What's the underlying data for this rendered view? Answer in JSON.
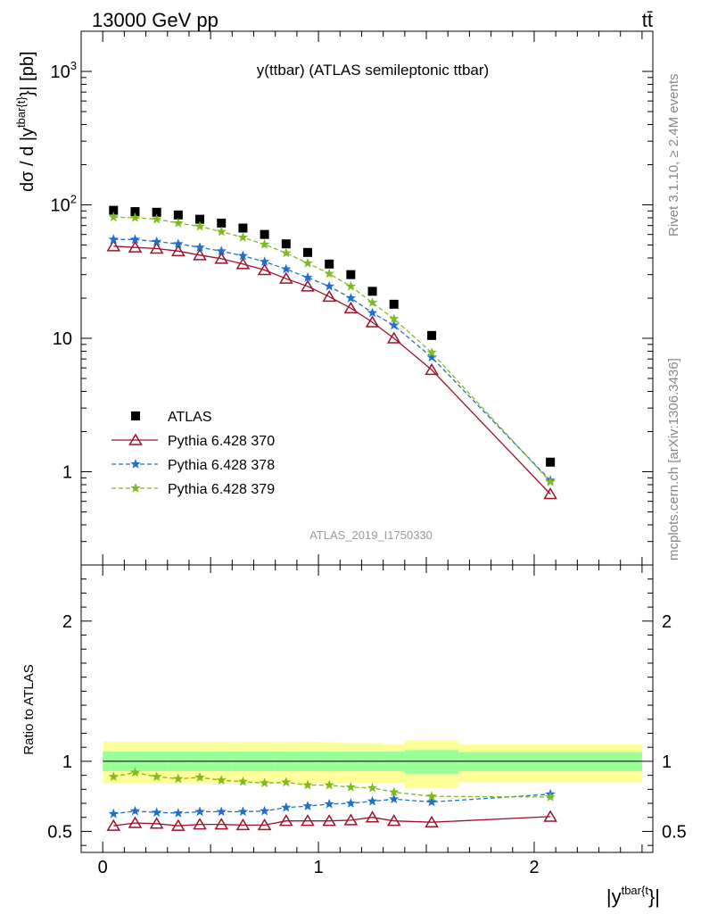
{
  "header": {
    "left": "13000 GeV pp",
    "right": "tt̄"
  },
  "side_labels": {
    "top": "Rivet 3.1.10, ≥ 2.4M events",
    "bottom": "mcplots.cern.ch [arXiv:1306.3436]"
  },
  "chart_data": [
    {
      "type": "scatter",
      "title": "y(ttbar) (ATLAS semileptonic ttbar)",
      "analysis_tag": "ATLAS_2019_I1750330",
      "ylabel_main": "dσ / d |y",
      "ylabel_sup": "tbar{t}",
      "ylabel_tail": "}| [pb]",
      "xlim": [
        -0.1,
        2.55
      ],
      "ylim": [
        0.2,
        2000
      ],
      "yscale": "log",
      "y_tick_labels": [
        "1",
        "10",
        "10",
        "10"
      ],
      "y_tick_exponents": [
        "",
        "",
        "2",
        "3"
      ],
      "legend_position": "middle-left",
      "x": [
        0.05,
        0.15,
        0.25,
        0.35,
        0.45,
        0.55,
        0.65,
        0.75,
        0.85,
        0.95,
        1.05,
        1.15,
        1.25,
        1.35,
        1.525,
        2.075
      ],
      "series": [
        {
          "name": "ATLAS",
          "color": "#000000",
          "marker": "square",
          "line": "none",
          "values": [
            91,
            89,
            88,
            84,
            78,
            73,
            67,
            60,
            51,
            44,
            36,
            30,
            22.5,
            18,
            10.5,
            1.18
          ]
        },
        {
          "name": "Pythia 6.428 370",
          "color": "#a0112a",
          "marker": "triangle-open",
          "line": "solid",
          "values": [
            49,
            48,
            47,
            45,
            42,
            39.5,
            36,
            32.5,
            28,
            24.5,
            20.5,
            16.8,
            13.2,
            10,
            5.8,
            0.68
          ]
        },
        {
          "name": "Pythia 6.428 378",
          "color": "#1f6fd0",
          "marker": "star",
          "line": "dashed",
          "values": [
            55,
            55,
            53,
            51,
            48,
            45,
            41.5,
            37.5,
            33,
            28.5,
            24.5,
            20,
            15.5,
            12.5,
            7.2,
            0.86
          ]
        },
        {
          "name": "Pythia 6.428 379",
          "color": "#80bb1e",
          "marker": "star",
          "line": "dashed",
          "values": [
            81,
            80,
            78,
            73,
            69,
            63,
            57,
            50.5,
            43.5,
            36.5,
            30.5,
            24.5,
            18.5,
            14,
            7.8,
            0.84
          ]
        }
      ]
    },
    {
      "type": "scatter",
      "ylabel": "Ratio to ATLAS",
      "xlabel_main": "|y",
      "xlabel_sup": "tbar{t",
      "xlabel_tail": "}|",
      "xlim": [
        -0.1,
        2.55
      ],
      "ylim": [
        0.35,
        2.4
      ],
      "x_ticks": [
        0,
        1,
        2
      ],
      "x_tick_labels": [
        "0",
        "1",
        "2"
      ],
      "y_ticks": [
        0.5,
        1,
        2
      ],
      "y_tick_labels": [
        "0.5",
        "1",
        "2"
      ],
      "reference_line": 1,
      "bands": [
        {
          "x0": 0.0,
          "x1": 0.1,
          "inner": [
            0.93,
            1.07
          ],
          "outer": [
            0.84,
            1.14
          ]
        },
        {
          "x0": 0.1,
          "x1": 0.2,
          "inner": [
            0.93,
            1.07
          ],
          "outer": [
            0.84,
            1.14
          ]
        },
        {
          "x0": 0.2,
          "x1": 0.3,
          "inner": [
            0.93,
            1.07
          ],
          "outer": [
            0.84,
            1.14
          ]
        },
        {
          "x0": 0.3,
          "x1": 0.4,
          "inner": [
            0.93,
            1.07
          ],
          "outer": [
            0.84,
            1.14
          ]
        },
        {
          "x0": 0.4,
          "x1": 0.5,
          "inner": [
            0.93,
            1.07
          ],
          "outer": [
            0.84,
            1.14
          ]
        },
        {
          "x0": 0.5,
          "x1": 0.6,
          "inner": [
            0.93,
            1.07
          ],
          "outer": [
            0.84,
            1.14
          ]
        },
        {
          "x0": 0.6,
          "x1": 0.7,
          "inner": [
            0.93,
            1.07
          ],
          "outer": [
            0.84,
            1.14
          ]
        },
        {
          "x0": 0.7,
          "x1": 0.8,
          "inner": [
            0.93,
            1.07
          ],
          "outer": [
            0.84,
            1.14
          ]
        },
        {
          "x0": 0.8,
          "x1": 0.9,
          "inner": [
            0.93,
            1.07
          ],
          "outer": [
            0.84,
            1.14
          ]
        },
        {
          "x0": 0.9,
          "x1": 1.0,
          "inner": [
            0.93,
            1.07
          ],
          "outer": [
            0.84,
            1.14
          ]
        },
        {
          "x0": 1.0,
          "x1": 1.1,
          "inner": [
            0.93,
            1.07
          ],
          "outer": [
            0.84,
            1.135
          ]
        },
        {
          "x0": 1.1,
          "x1": 1.2,
          "inner": [
            0.93,
            1.07
          ],
          "outer": [
            0.845,
            1.13
          ]
        },
        {
          "x0": 1.2,
          "x1": 1.3,
          "inner": [
            0.93,
            1.07
          ],
          "outer": [
            0.845,
            1.13
          ]
        },
        {
          "x0": 1.3,
          "x1": 1.4,
          "inner": [
            0.93,
            1.07
          ],
          "outer": [
            0.845,
            1.12
          ]
        },
        {
          "x0": 1.4,
          "x1": 1.65,
          "inner": [
            0.91,
            1.08
          ],
          "outer": [
            0.81,
            1.15
          ]
        },
        {
          "x0": 1.65,
          "x1": 2.5,
          "inner": [
            0.93,
            1.065
          ],
          "outer": [
            0.85,
            1.12
          ]
        }
      ],
      "x": [
        0.05,
        0.15,
        0.25,
        0.35,
        0.45,
        0.55,
        0.65,
        0.75,
        0.85,
        0.95,
        1.05,
        1.15,
        1.25,
        1.35,
        1.525,
        2.075
      ],
      "series": [
        {
          "name": "Pythia 6.428 370",
          "color": "#a0112a",
          "marker": "triangle-open",
          "line": "solid",
          "values": [
            0.54,
            0.56,
            0.555,
            0.54,
            0.55,
            0.55,
            0.545,
            0.545,
            0.575,
            0.575,
            0.575,
            0.58,
            0.6,
            0.575,
            0.565,
            0.605
          ]
        },
        {
          "name": "Pythia 6.428 378",
          "color": "#1f6fd0",
          "marker": "star",
          "line": "dashed",
          "values": [
            0.625,
            0.645,
            0.635,
            0.63,
            0.64,
            0.64,
            0.64,
            0.645,
            0.67,
            0.68,
            0.695,
            0.7,
            0.715,
            0.73,
            0.71,
            0.765
          ]
        },
        {
          "name": "Pythia 6.428 379",
          "color": "#80bb1e",
          "marker": "star",
          "line": "dashed",
          "values": [
            0.89,
            0.92,
            0.89,
            0.875,
            0.885,
            0.865,
            0.855,
            0.845,
            0.85,
            0.83,
            0.83,
            0.815,
            0.81,
            0.78,
            0.75,
            0.745
          ]
        }
      ]
    }
  ]
}
